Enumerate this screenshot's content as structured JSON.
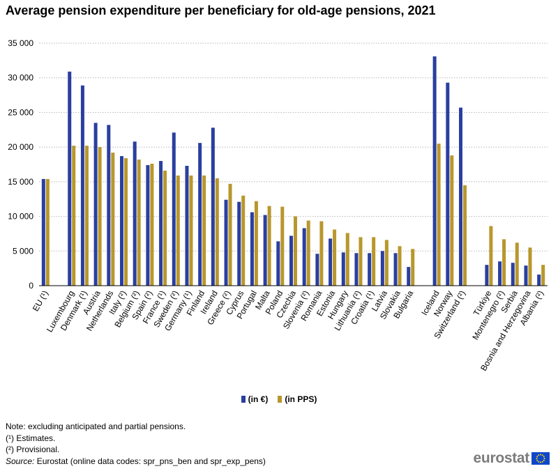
{
  "title": "Average pension expenditure per beneficiary for old-age pensions, 2021",
  "legend": {
    "items": [
      {
        "label": "(in €)",
        "color": "#2a3f9f"
      },
      {
        "label": "(in PPS)",
        "color": "#b8972c"
      }
    ]
  },
  "notes": {
    "line1": "Note: excluding anticipated and partial pensions.",
    "line2": "(¹) Estimates.",
    "line3": "(²) Provisional.",
    "source_label": "Source:",
    "source_text": " Eurostat (online data codes: spr_pns_ben and spr_exp_pens)"
  },
  "logo": {
    "text": "eurostat"
  },
  "chart_data": {
    "type": "bar",
    "ylim": [
      0,
      35000
    ],
    "yticks": [
      0,
      5000,
      10000,
      15000,
      20000,
      25000,
      30000,
      35000
    ],
    "ytick_labels": [
      "0",
      "5 000",
      "10 000",
      "15 000",
      "20 000",
      "25 000",
      "30 000",
      "35 000"
    ],
    "grid": true,
    "legend_position": "bottom-center",
    "categories": [
      "EU (¹)",
      "",
      "Luxembourg",
      "Denmark (¹)",
      "Austria",
      "Netherlands",
      "Italy (²)",
      "Belgium (²)",
      "Spain (²)",
      "France (¹)",
      "Sweden (²)",
      "Germany (¹)",
      "Finland",
      "Ireland",
      "Greece (²)",
      "Cyprus",
      "Portugal",
      "Malta",
      "Poland",
      "Czechia",
      "Slovenia (²)",
      "Romania",
      "Estonia",
      "Hungary",
      "Lithuania (²)",
      "Croatia (¹)",
      "Latvia",
      "Slovakia",
      "Bulgaria",
      "",
      "Iceland",
      "Norway",
      "Switzerland (²)",
      "",
      "Türkiye",
      "Montenegro (²)",
      "Serbia",
      "Bosnia and Herzegovina",
      "Albania (²)"
    ],
    "series": [
      {
        "name": "(in €)",
        "color": "#2a3f9f",
        "values": [
          15400,
          null,
          30900,
          28900,
          23500,
          23200,
          18700,
          20800,
          17400,
          18000,
          22100,
          17300,
          20600,
          22800,
          12400,
          12100,
          10600,
          10200,
          6400,
          7200,
          8300,
          4600,
          6800,
          4800,
          4700,
          4700,
          5000,
          4700,
          2700,
          null,
          33100,
          29300,
          25700,
          null,
          3000,
          3500,
          3300,
          2900,
          1600
        ]
      },
      {
        "name": "(in PPS)",
        "color": "#b8972c",
        "values": [
          15400,
          null,
          20200,
          20200,
          20000,
          19200,
          18400,
          18200,
          17600,
          16600,
          15900,
          15900,
          15900,
          15500,
          14700,
          13000,
          12200,
          11500,
          11400,
          10000,
          9400,
          9300,
          8100,
          7600,
          7000,
          7000,
          6600,
          5700,
          5300,
          null,
          20500,
          18800,
          14500,
          null,
          8600,
          6700,
          6200,
          5500,
          3000
        ]
      }
    ]
  }
}
